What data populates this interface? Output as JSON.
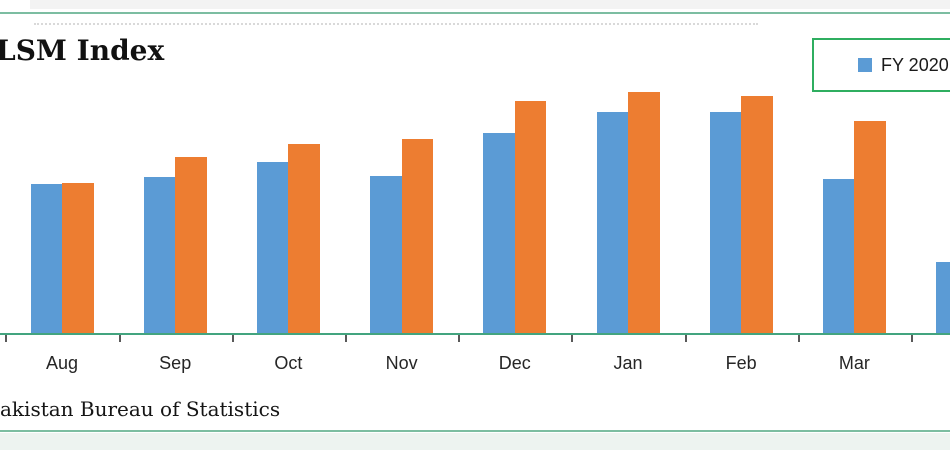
{
  "figure": {
    "title": "LSM Index",
    "source_note": "akistan Bureau of Statistics"
  },
  "legend": {
    "position": "top-right",
    "items": [
      {
        "label": "FY 2020",
        "marker": "square-icon",
        "marker_color": "#5B9BD5"
      }
    ]
  },
  "chart_data": {
    "type": "bar",
    "title": "LSM Index",
    "categories": [
      "Aug",
      "Sep",
      "Oct",
      "Nov",
      "Dec",
      "Jan",
      "Feb",
      "Mar",
      ""
    ],
    "series": [
      {
        "name": "FY 2020",
        "color": "#5B9BD5",
        "values": [
          150,
          157,
          172,
          158,
          201,
          222,
          222,
          155,
          72
        ]
      },
      {
        "name": "",
        "color": "#ED7D31",
        "values": [
          151,
          177,
          190,
          195,
          233,
          242,
          238,
          213,
          null
        ]
      }
    ],
    "value_units": "bar heights in screen pixels (value axis cropped out of frame)",
    "xlabel": "",
    "ylabel": "",
    "ylim": [
      0,
      260
    ],
    "grid": false,
    "legend_position": "top-right"
  },
  "colors": {
    "bar_blue": "#5B9BD5",
    "bar_orange": "#ED7D31",
    "rule_green": "#7cbda1",
    "axis_green": "#43a47f",
    "legend_border_green": "#2fae60",
    "tick_gray": "#595959",
    "dotted_gray": "#d9d9d9",
    "strip_top": "#f3f3f3",
    "strip_bottom": "#edf3f0",
    "label_gray": "#262626"
  }
}
